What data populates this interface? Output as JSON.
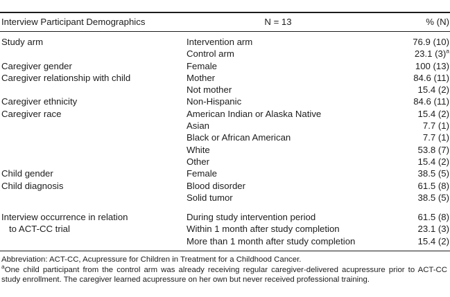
{
  "page": {
    "background": "#ffffff",
    "text_color": "#1c1c1c",
    "rule_color": "#1c1c1c"
  },
  "table": {
    "header": {
      "title": "Interview Participant Demographics",
      "n_label": "N = 13",
      "percent_label": "% (N)"
    },
    "rows": [
      {
        "category": "Study arm",
        "item": "Intervention arm",
        "value": "76.9 (10)",
        "sup": ""
      },
      {
        "category": "",
        "item": "Control arm",
        "value": "23.1 (3)",
        "sup": "a"
      },
      {
        "category": "Caregiver gender",
        "item": "Female",
        "value": "100 (13)",
        "sup": ""
      },
      {
        "category": "Caregiver relationship with child",
        "item": "Mother",
        "value": "84.6 (11)",
        "sup": ""
      },
      {
        "category": "",
        "item": "Not mother",
        "value": "15.4 (2)",
        "sup": ""
      },
      {
        "category": "Caregiver ethnicity",
        "item": "Non-Hispanic",
        "value": "84.6 (11)",
        "sup": ""
      },
      {
        "category": "Caregiver race",
        "item": "American Indian or Alaska Native",
        "value": "15.4 (2)",
        "sup": ""
      },
      {
        "category": "",
        "item": "Asian",
        "value": "7.7 (1)",
        "sup": ""
      },
      {
        "category": "",
        "item": "Black or African American",
        "value": "7.7 (1)",
        "sup": ""
      },
      {
        "category": "",
        "item": "White",
        "value": "53.8 (7)",
        "sup": ""
      },
      {
        "category": "",
        "item": "Other",
        "value": "15.4 (2)",
        "sup": ""
      },
      {
        "category": "Child gender",
        "item": "Female",
        "value": "38.5 (5)",
        "sup": ""
      },
      {
        "category": "Child diagnosis",
        "item": "Blood disorder",
        "value": "61.5 (8)",
        "sup": ""
      },
      {
        "category": "",
        "item": "Solid tumor",
        "value": "38.5 (5)",
        "sup": ""
      },
      {
        "category": "Interview occurrence in relation",
        "item": "During study intervention period",
        "value": "61.5 (8)",
        "sup": ""
      },
      {
        "category": "to ACT-CC trial",
        "item": "Within 1 month after study completion",
        "value": "23.1 (3)",
        "sup": ""
      },
      {
        "category": "",
        "item": "More than 1 month after study completion",
        "value": "15.4 (2)",
        "sup": ""
      }
    ]
  },
  "footnotes": {
    "abbreviation": "Abbreviation: ACT-CC, Acupressure for Children in Treatment for a Childhood Cancer.",
    "marker": "a",
    "note": "One child participant from the control arm was already receiving regular caregiver-delivered acupressure prior to ACT-CC study enrollment. The caregiver learned acupressure on her own but never received professional training."
  }
}
